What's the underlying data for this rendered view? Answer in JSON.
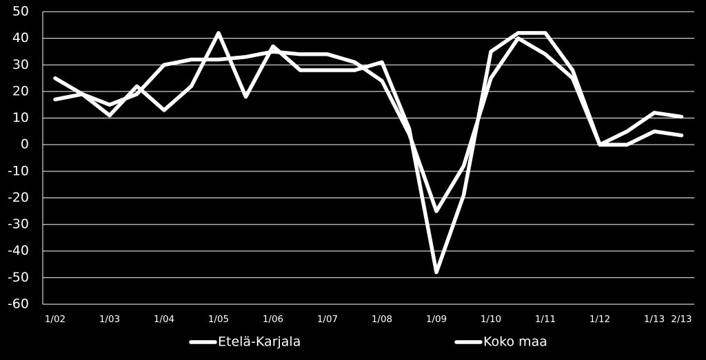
{
  "chart_data": {
    "type": "line",
    "title": "",
    "xlabel": "",
    "ylabel": "",
    "ylim": [
      -60,
      50
    ],
    "yticks": [
      50,
      40,
      30,
      20,
      10,
      0,
      -10,
      -20,
      -30,
      -40,
      -50,
      -60
    ],
    "grid": true,
    "legend_position": "bottom",
    "x_labels": [
      "1/02",
      "1/03",
      "1/04",
      "1/05",
      "1/06",
      "1/07",
      "1/08",
      "1/09",
      "1/10",
      "1/11",
      "1/12",
      "1/13",
      "2/13"
    ],
    "x_label_points": [
      0,
      2,
      4,
      6,
      8,
      10,
      12,
      14,
      16,
      18,
      20,
      22,
      23
    ],
    "x": [
      "1/02",
      "3/02",
      "1/03",
      "3/03",
      "1/04",
      "3/04",
      "1/05",
      "3/05",
      "1/06",
      "3/06",
      "1/07",
      "3/07",
      "1/08",
      "3/08",
      "1/09",
      "3/09",
      "1/10",
      "3/10",
      "1/11",
      "3/11",
      "1/12",
      "3/12",
      "1/13",
      "2/13"
    ],
    "series": [
      {
        "name": "Etelä-Karjala",
        "values": [
          25,
          19,
          11,
          22,
          13,
          22,
          42,
          18,
          37,
          28,
          28,
          28,
          31,
          6,
          -48,
          -19,
          35,
          42,
          42,
          28,
          0,
          5,
          12,
          10.5
        ]
      },
      {
        "name": "Koko maa",
        "values": [
          17,
          19,
          15,
          19,
          30,
          32,
          32,
          33,
          35,
          34,
          34,
          31,
          24,
          4,
          -25,
          -8,
          25,
          40,
          34,
          25,
          0,
          0,
          5,
          3.5
        ]
      }
    ],
    "colors": {
      "background": "#000000",
      "lines": "#ffffff",
      "grid": "#ffffff",
      "text": "#ffffff"
    }
  }
}
